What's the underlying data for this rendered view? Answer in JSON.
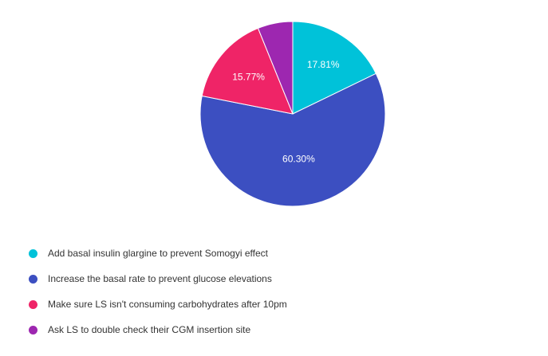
{
  "chart_data": {
    "type": "pie",
    "title": "",
    "start_angle_deg": 0,
    "direction": "clockwise",
    "labels": [
      "Add basal insulin glargine to prevent Somogyi effect",
      "Increase the basal rate to prevent glucose elevations",
      "Make sure LS isn't consuming carbohydrates after 10pm",
      "Ask LS to double check their CGM insertion site"
    ],
    "values": [
      17.81,
      60.3,
      15.77,
      6.12
    ],
    "value_labels": [
      "17.81%",
      "60.30%",
      "15.77%",
      ""
    ],
    "colors": [
      "#00c2d9",
      "#3c4fc1",
      "#ef2467",
      "#9d27b0"
    ],
    "legend_position": "bottom-left"
  }
}
